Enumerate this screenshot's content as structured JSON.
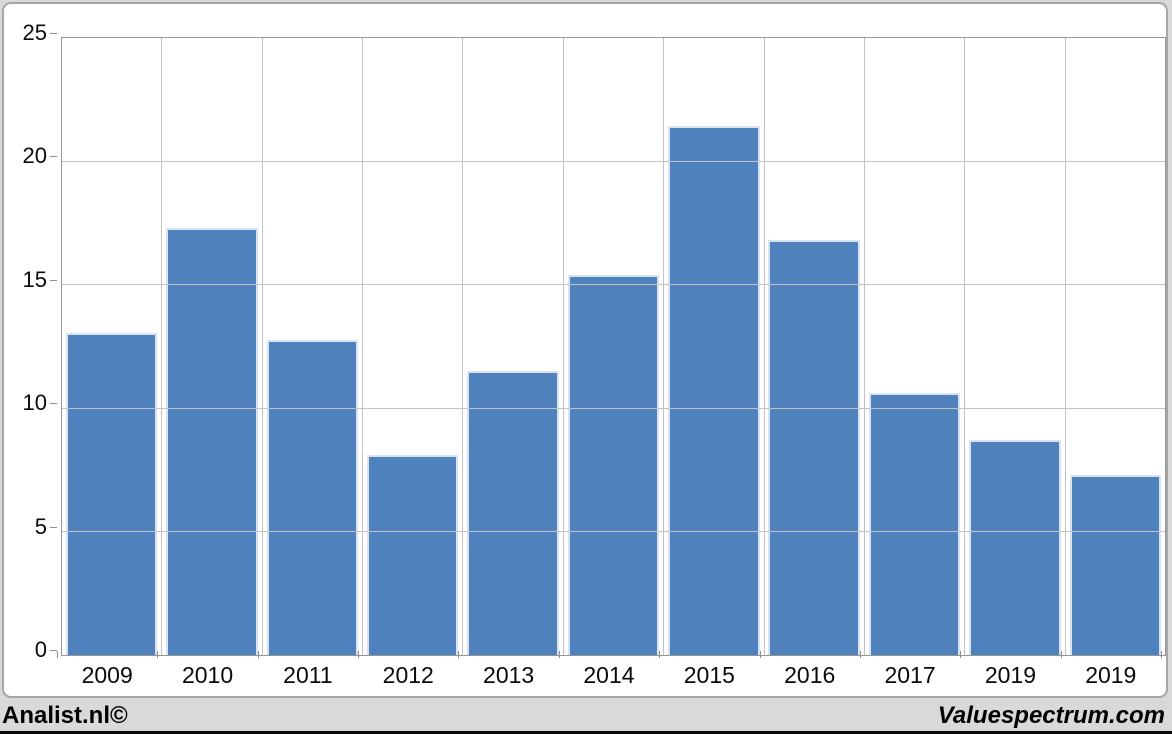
{
  "chart_data": {
    "type": "bar",
    "categories": [
      "2009",
      "2010",
      "2011",
      "2012",
      "2013",
      "2014",
      "2015",
      "2016",
      "2017",
      "2019",
      "2019"
    ],
    "values": [
      13.05,
      17.3,
      12.75,
      8.1,
      11.5,
      15.4,
      21.45,
      16.8,
      10.6,
      8.7,
      7.3
    ],
    "title": "",
    "xlabel": "",
    "ylabel": "",
    "ylim": [
      0,
      25
    ],
    "y_ticks": [
      0,
      5,
      10,
      15,
      20,
      25
    ],
    "grid": true,
    "legend": "none",
    "bar_color": "#4f81bd",
    "bar_border_color": "#d9e2f0",
    "gridline_color": "#c3c3c3",
    "axis_color": "#969696",
    "plot_background": "#ffffff",
    "outer_background": "#d9d9d9"
  },
  "footer": {
    "left_credit": "Analist.nl©",
    "right_credit": "Valuespectrum.com"
  }
}
